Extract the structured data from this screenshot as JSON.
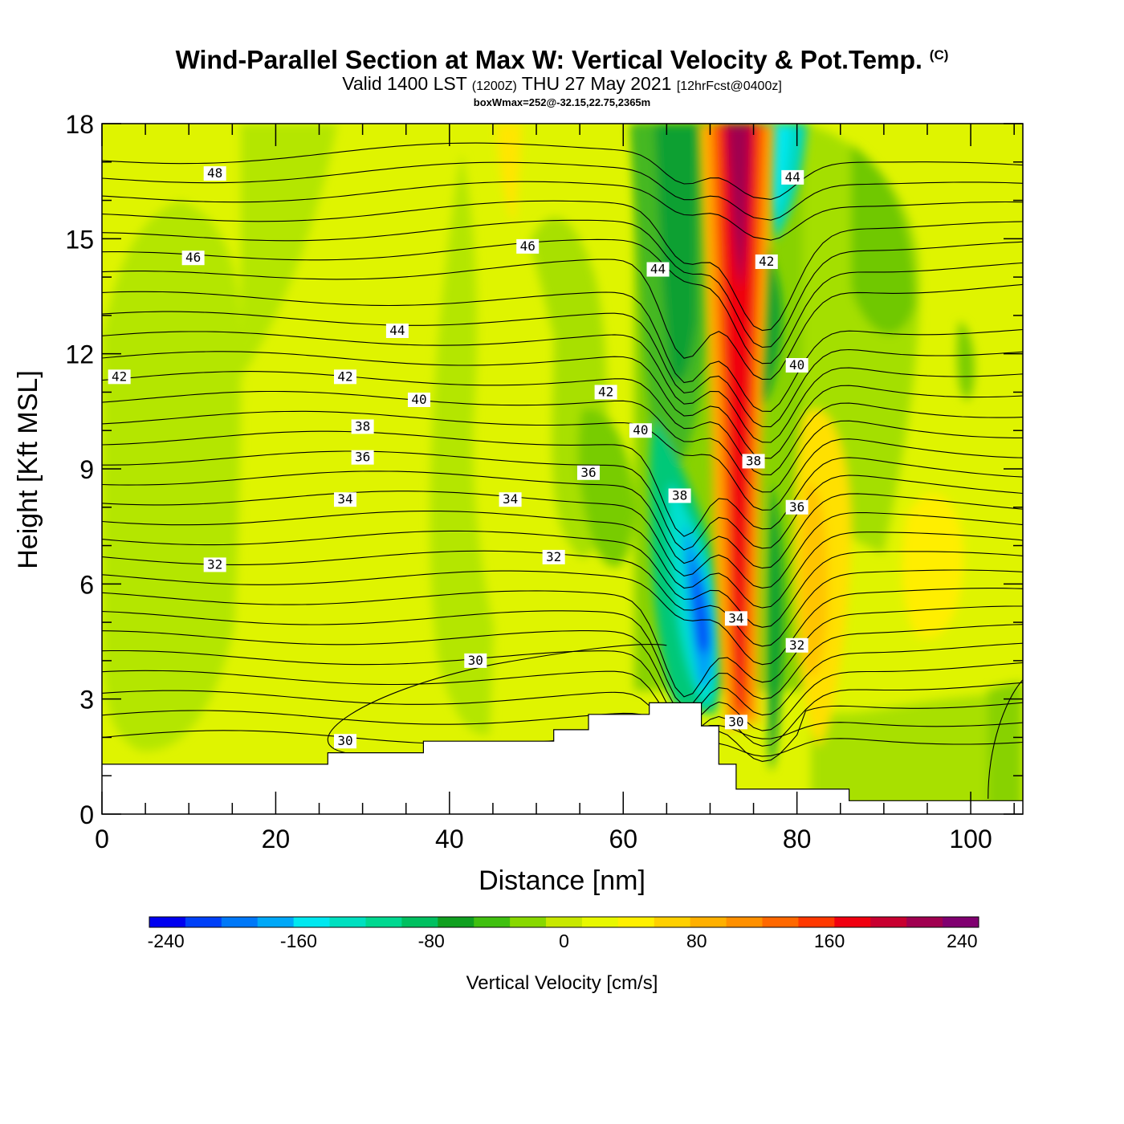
{
  "title": {
    "main": "Wind-Parallel Section at Max W: Vertical Velocity & Pot.Temp.",
    "copyright": "(C)",
    "sub_prefix": "Valid 1400 LST",
    "sub_z": "(1200Z)",
    "sub_date": "THU 27 May 2021",
    "sub_fcst": "[12hrFcst@0400z]",
    "boxwmax": "boxWmax=252@-32.15,22.75,2365m"
  },
  "chart_data": {
    "type": "heatmap",
    "xlabel": "Distance [nm]",
    "ylabel": "Height [Kft MSL]",
    "xlim": [
      0,
      106
    ],
    "ylim": [
      0,
      18
    ],
    "x_ticks": [
      0,
      20,
      40,
      60,
      80,
      100
    ],
    "y_ticks": [
      0,
      3,
      6,
      9,
      12,
      15,
      18
    ],
    "colorbar": {
      "title": "Vertical Velocity [cm/s]",
      "min": -250,
      "max": 250,
      "ticks": [
        -240,
        -160,
        -80,
        0,
        80,
        160,
        240
      ],
      "colors": [
        "#0000f0",
        "#0040f8",
        "#0078f8",
        "#00a8f8",
        "#00e8f0",
        "#00e0c0",
        "#00d890",
        "#00c060",
        "#10a020",
        "#40c010",
        "#88d800",
        "#c8e800",
        "#e8f800",
        "#fff000",
        "#ffd000",
        "#ffb000",
        "#ff9000",
        "#ff6800",
        "#ff3800",
        "#f00010",
        "#c80030",
        "#a00050",
        "#800070"
      ]
    },
    "terrain_kft": [
      [
        0,
        1.3
      ],
      [
        26,
        1.3
      ],
      [
        26,
        1.6
      ],
      [
        37,
        1.6
      ],
      [
        37,
        1.9
      ],
      [
        52,
        1.9
      ],
      [
        52,
        2.2
      ],
      [
        56,
        2.2
      ],
      [
        56,
        2.6
      ],
      [
        63,
        2.6
      ],
      [
        63,
        2.9
      ],
      [
        69,
        2.9
      ],
      [
        69,
        2.3
      ],
      [
        71,
        2.3
      ],
      [
        71,
        1.3
      ],
      [
        73,
        1.3
      ],
      [
        73,
        0.65
      ],
      [
        86,
        0.65
      ],
      [
        86,
        0.35
      ],
      [
        106,
        0.35
      ]
    ],
    "wind_features": {
      "downdraft_core": {
        "x": 69,
        "y": 5.5,
        "value": -240
      },
      "updraft_core": {
        "x": 73,
        "y": 16,
        "value": 252
      }
    },
    "contours": {
      "variable": "potential temperature",
      "labels": [
        {
          "text": "48",
          "x": 13,
          "y": 16.7
        },
        {
          "text": "46",
          "x": 10.5,
          "y": 14.5
        },
        {
          "text": "46",
          "x": 49,
          "y": 14.8
        },
        {
          "text": "44",
          "x": 34,
          "y": 12.6
        },
        {
          "text": "44",
          "x": 64,
          "y": 14.2
        },
        {
          "text": "44",
          "x": 79.5,
          "y": 16.6
        },
        {
          "text": "42",
          "x": 2,
          "y": 11.4
        },
        {
          "text": "42",
          "x": 28,
          "y": 11.4
        },
        {
          "text": "42",
          "x": 58,
          "y": 11
        },
        {
          "text": "42",
          "x": 76.5,
          "y": 14.4
        },
        {
          "text": "40",
          "x": 36.5,
          "y": 10.8
        },
        {
          "text": "40",
          "x": 62,
          "y": 10
        },
        {
          "text": "40",
          "x": 80,
          "y": 11.7
        },
        {
          "text": "38",
          "x": 30,
          "y": 10.1
        },
        {
          "text": "38",
          "x": 66.5,
          "y": 8.3
        },
        {
          "text": "38",
          "x": 75,
          "y": 9.2
        },
        {
          "text": "36",
          "x": 30,
          "y": 9.3
        },
        {
          "text": "36",
          "x": 56,
          "y": 8.9
        },
        {
          "text": "36",
          "x": 80,
          "y": 8
        },
        {
          "text": "34",
          "x": 28,
          "y": 8.2
        },
        {
          "text": "34",
          "x": 47,
          "y": 8.2
        },
        {
          "text": "34",
          "x": 73,
          "y": 5.1
        },
        {
          "text": "32",
          "x": 13,
          "y": 6.5
        },
        {
          "text": "32",
          "x": 52,
          "y": 6.7
        },
        {
          "text": "32",
          "x": 80,
          "y": 4.4
        },
        {
          "text": "30",
          "x": 43,
          "y": 4
        },
        {
          "text": "30",
          "x": 28,
          "y": 1.9
        },
        {
          "text": "30",
          "x": 73,
          "y": 2.4
        }
      ]
    }
  }
}
